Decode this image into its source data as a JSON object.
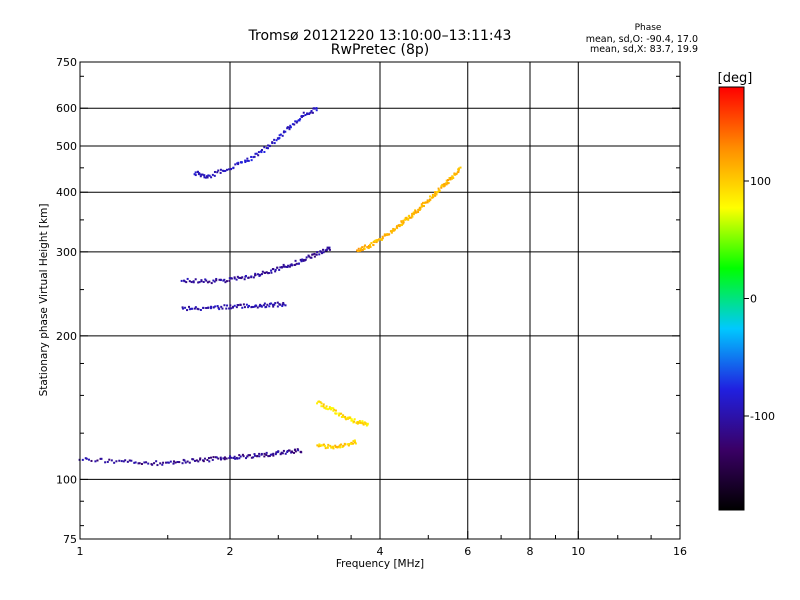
{
  "chart_data": {
    "type": "scatter",
    "title": "Tromsø 20121220 13:10:00–13:11:43",
    "subtitle": "RwPretec (8p)",
    "xlabel": "Frequency [MHz]",
    "ylabel": "Stationary phase Virtual Height [km]",
    "xscale": "log2",
    "yscale": "log",
    "xlim": [
      1,
      16
    ],
    "ylim": [
      75,
      750
    ],
    "xticks": [
      1,
      2,
      4,
      6,
      8,
      10,
      16
    ],
    "yticks": [
      75,
      100,
      200,
      300,
      400,
      500,
      600,
      750
    ],
    "grid": true,
    "stats": {
      "heading": "Phase",
      "line_o": "mean, sd,O: -90.4, 17.0",
      "line_x": "mean, sd,X: 83.7, 19.9"
    },
    "colorbar": {
      "label": "[deg]",
      "ticks": [
        100,
        0,
        -100
      ],
      "colors": [
        "#000000",
        "#3a0066",
        "#2020e0",
        "#00c8ff",
        "#00ff00",
        "#ffff00",
        "#ff8c00",
        "#ff0000"
      ]
    },
    "series": [
      {
        "component": "O",
        "traces": [
          {
            "f": [
              1.0,
              1.2,
              1.4,
              1.6,
              1.8,
              2.0,
              2.2,
              2.4,
              2.6,
              2.8
            ],
            "h": [
              110,
              109,
              108,
              109,
              110,
              111,
              112,
              113,
              114,
              115
            ],
            "phase": -110
          },
          {
            "f": [
              1.6,
              1.8,
              2.0,
              2.2,
              2.4,
              2.6,
              2.8,
              3.0,
              3.2
            ],
            "h": [
              262,
              260,
              262,
              266,
              272,
              280,
              288,
              298,
              305
            ],
            "phase": -105
          },
          {
            "f": [
              1.6,
              1.8,
              2.0,
              2.2,
              2.4,
              2.6
            ],
            "h": [
              228,
              229,
              230,
              231,
              232,
              233
            ],
            "phase": -100
          },
          {
            "f": [
              1.7,
              1.8,
              2.0,
              2.2,
              2.4,
              2.6,
              2.8,
              3.0
            ],
            "h": [
              440,
              430,
              450,
              470,
              500,
              540,
              580,
              600
            ],
            "phase": -90
          }
        ]
      },
      {
        "component": "X",
        "traces": [
          {
            "f": [
              3.0,
              3.2,
              3.4,
              3.6
            ],
            "h": [
              118,
              117,
              118,
              120
            ],
            "phase": 100
          },
          {
            "f": [
              3.6,
              3.8,
              4.0,
              4.2,
              4.4,
              4.6,
              4.8,
              5.0,
              5.2,
              5.4,
              5.6,
              5.8
            ],
            "h": [
              302,
              308,
              318,
              330,
              343,
              356,
              370,
              385,
              400,
              415,
              430,
              450
            ],
            "phase": 110
          },
          {
            "f": [
              3.0,
              3.2,
              3.4,
              3.6,
              3.8
            ],
            "h": [
              145,
              140,
              135,
              132,
              130
            ],
            "phase": 90
          }
        ]
      }
    ]
  }
}
